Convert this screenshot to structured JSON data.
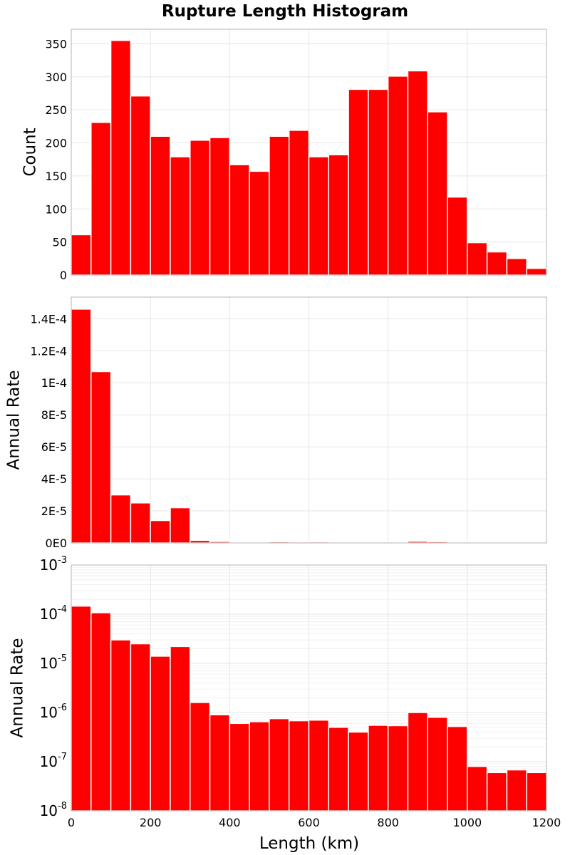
{
  "chart_data": {
    "title": "Rupture Length Histogram",
    "bar_color": "#ff0000",
    "xlabel": "Length (km)",
    "xlim": [
      0,
      1200
    ],
    "x_ticks": [
      0,
      200,
      400,
      600,
      800,
      1000,
      1200
    ],
    "x_tick_labels": [
      "0",
      "200",
      "400",
      "600",
      "800",
      "1000",
      "1200"
    ],
    "bin_width": 50,
    "bin_starts": [
      0,
      50,
      100,
      150,
      200,
      250,
      300,
      350,
      400,
      450,
      500,
      550,
      600,
      650,
      700,
      750,
      800,
      850,
      900,
      950,
      1000,
      1050,
      1100,
      1150
    ],
    "panels": [
      {
        "type": "bar",
        "ylabel": "Count",
        "yscale": "linear",
        "ylim": [
          0,
          372
        ],
        "y_ticks": [
          0,
          50,
          100,
          150,
          200,
          250,
          300,
          350
        ],
        "y_tick_labels": [
          "0",
          "50",
          "100",
          "150",
          "200",
          "250",
          "300",
          "350"
        ],
        "values": [
          61,
          231,
          355,
          271,
          210,
          179,
          204,
          208,
          167,
          157,
          210,
          219,
          179,
          182,
          281,
          281,
          301,
          309,
          247,
          118,
          49,
          35,
          25,
          10
        ]
      },
      {
        "type": "bar",
        "ylabel": "Annual Rate",
        "yscale": "linear",
        "ylim": [
          0,
          0.0001535
        ],
        "y_ticks": [
          0,
          2e-05,
          4e-05,
          6e-05,
          8e-05,
          0.0001,
          0.00012,
          0.00014
        ],
        "y_tick_labels": [
          "0E0",
          "2E-5",
          "4E-5",
          "6E-5",
          "8E-5",
          "1E-4",
          "1.2E-4",
          "1.4E-4"
        ],
        "values": [
          0.000146,
          0.000107,
          3e-05,
          2.5e-05,
          1.4e-05,
          2.2e-05,
          1.6e-06,
          9e-07,
          6e-07,
          6.5e-07,
          7.5e-07,
          6.8e-07,
          7e-07,
          5e-07,
          4e-07,
          5.5e-07,
          5.4e-07,
          1e-06,
          8e-07,
          5.2e-07,
          8e-08,
          6e-08,
          6.8e-08,
          6e-08
        ]
      },
      {
        "type": "bar",
        "ylabel": "Annual Rate",
        "yscale": "log",
        "ylim": [
          1e-08,
          0.001
        ],
        "y_ticks": [
          1e-08,
          1e-07,
          1e-06,
          1e-05,
          0.0001,
          0.001
        ],
        "y_tick_bases": [
          "10",
          "10",
          "10",
          "10",
          "10",
          "10"
        ],
        "y_tick_exponents": [
          "-8",
          "-7",
          "-6",
          "-5",
          "-4",
          "-3"
        ],
        "values": [
          0.000146,
          0.000107,
          3e-05,
          2.5e-05,
          1.4e-05,
          2.2e-05,
          1.6e-06,
          9e-07,
          6e-07,
          6.5e-07,
          7.5e-07,
          6.8e-07,
          7e-07,
          5e-07,
          4e-07,
          5.5e-07,
          5.4e-07,
          1e-06,
          8e-07,
          5.2e-07,
          8e-08,
          6e-08,
          6.8e-08,
          6e-08
        ]
      }
    ]
  }
}
